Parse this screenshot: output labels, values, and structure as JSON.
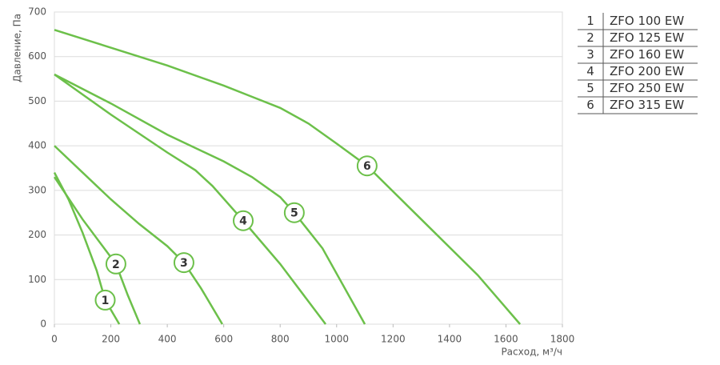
{
  "chart_data": {
    "type": "line",
    "y_label": "Давление, Па",
    "x_label": "Расход, м³/ч",
    "xlim": [
      0,
      1800
    ],
    "xticks": [
      0,
      200,
      400,
      600,
      800,
      1000,
      1200,
      1400,
      1600,
      1800
    ],
    "ylim": [
      0,
      700
    ],
    "yticks": [
      0,
      100,
      200,
      300,
      400,
      500,
      600,
      700
    ],
    "grid": true,
    "color": "#6cc04a",
    "series": [
      {
        "label": "1",
        "name": "ZFO 100 EW",
        "x": [
          0,
          50,
          100,
          150,
          180,
          230
        ],
        "values": [
          340,
          280,
          205,
          120,
          54,
          0
        ],
        "marker_x": 180,
        "marker_y": 54
      },
      {
        "label": "2",
        "name": "ZFO 125 EW",
        "x": [
          0,
          100,
          218,
          260,
          303
        ],
        "values": [
          330,
          235,
          135,
          65,
          0
        ],
        "marker_x": 218,
        "marker_y": 135
      },
      {
        "label": "3",
        "name": "ZFO 160 EW",
        "x": [
          0,
          100,
          200,
          300,
          400,
          459,
          520,
          595
        ],
        "values": [
          400,
          340,
          280,
          225,
          175,
          138,
          80,
          0
        ],
        "marker_x": 459,
        "marker_y": 138
      },
      {
        "label": "4",
        "name": "ZFO 200 EW",
        "x": [
          0,
          200,
          400,
          500,
          560,
          669,
          800,
          961
        ],
        "values": [
          560,
          470,
          385,
          345,
          310,
          232,
          135,
          0
        ],
        "marker_x": 669,
        "marker_y": 232
      },
      {
        "label": "5",
        "name": "ZFO 250 EW",
        "x": [
          0,
          200,
          400,
          600,
          700,
          800,
          850,
          950,
          1100
        ],
        "values": [
          560,
          495,
          425,
          365,
          330,
          285,
          250,
          170,
          0
        ],
        "marker_x": 850,
        "marker_y": 250
      },
      {
        "label": "6",
        "name": "ZFO 315 EW",
        "x": [
          0,
          200,
          400,
          600,
          700,
          800,
          900,
          1000,
          1108,
          1300,
          1500,
          1650
        ],
        "values": [
          660,
          620,
          580,
          535,
          510,
          485,
          450,
          405,
          355,
          235,
          110,
          0
        ],
        "marker_x": 1108,
        "marker_y": 355
      }
    ]
  }
}
